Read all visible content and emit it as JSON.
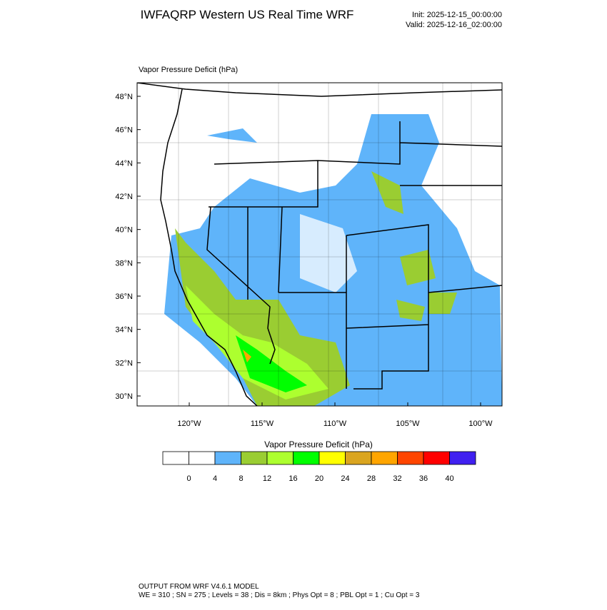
{
  "header": {
    "title": "IWFAQRP Western US Real Time WRF",
    "init": "Init: 2025-12-15_00:00:00",
    "valid": "Valid: 2025-12-16_02:00:00"
  },
  "map": {
    "title": "Vapor Pressure Deficit   (hPa)",
    "lat_ticks": [
      {
        "value": 30,
        "label": "30°N"
      },
      {
        "value": 32,
        "label": "32°N"
      },
      {
        "value": 34,
        "label": "34°N"
      },
      {
        "value": 36,
        "label": "36°N"
      },
      {
        "value": 38,
        "label": "38°N"
      },
      {
        "value": 40,
        "label": "40°N"
      },
      {
        "value": 42,
        "label": "42°N"
      },
      {
        "value": 44,
        "label": "44°N"
      },
      {
        "value": 46,
        "label": "46°N"
      },
      {
        "value": 48,
        "label": "48°N"
      }
    ],
    "lon_ticks": [
      {
        "value": -120,
        "label": "120°W"
      },
      {
        "value": -115,
        "label": "115°W"
      },
      {
        "value": -110,
        "label": "110°W"
      },
      {
        "value": -105,
        "label": "105°W"
      },
      {
        "value": -100,
        "label": "100°W"
      }
    ]
  },
  "colorbar": {
    "title": "Vapor Pressure Deficit  (hPa)",
    "levels": [
      0,
      4,
      8,
      12,
      16,
      20,
      24,
      28,
      32,
      36,
      40
    ],
    "colors": [
      "#ffffff",
      "#ffffff",
      "#5fb4fa",
      "#9acd32",
      "#adff2f",
      "#00ff00",
      "#ffff00",
      "#daa520",
      "#ffa500",
      "#ff4500",
      "#ff0000",
      "#4020f0"
    ]
  },
  "footer": {
    "line1": "OUTPUT FROM WRF V4.6.1 MODEL",
    "line2": "WE = 310 ; SN = 275 ; Levels = 38 ; Dis = 8km ; Phys Opt = 8 ; PBL Opt = 1 ; Cu Opt = 3"
  }
}
